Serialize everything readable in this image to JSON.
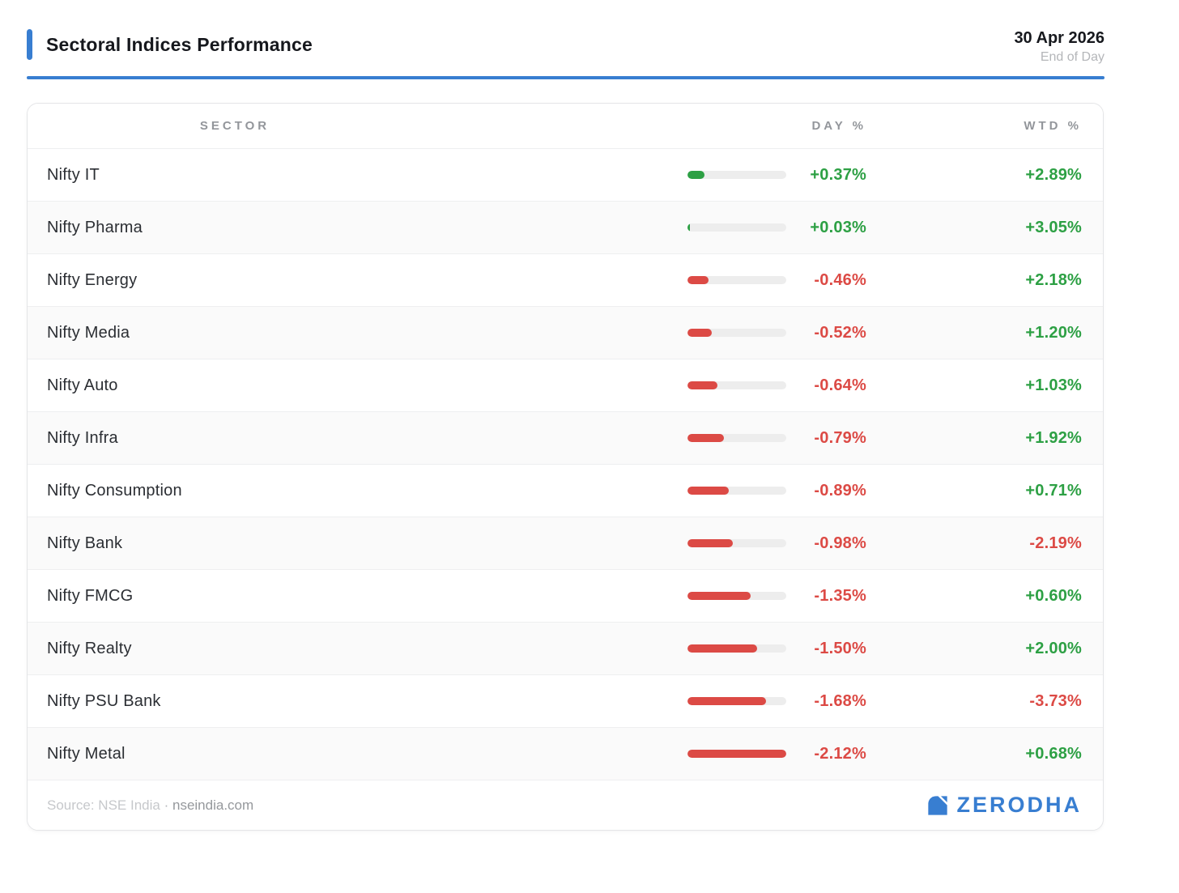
{
  "header": {
    "title": "Sectoral Indices Performance",
    "date": "30 Apr 2026",
    "period": "End of Day"
  },
  "table": {
    "columns": [
      "SECTOR",
      "DAY %",
      "WTD %"
    ],
    "bar_max_abs_day_pct": 2.12,
    "rows": [
      {
        "sector": "Nifty IT",
        "day_pct": 0.37,
        "day_label": "+0.37%",
        "wtd_pct": 2.89,
        "wtd_label": "+2.89%"
      },
      {
        "sector": "Nifty Pharma",
        "day_pct": 0.03,
        "day_label": "+0.03%",
        "wtd_pct": 3.05,
        "wtd_label": "+3.05%"
      },
      {
        "sector": "Nifty Energy",
        "day_pct": -0.46,
        "day_label": "-0.46%",
        "wtd_pct": 2.18,
        "wtd_label": "+2.18%"
      },
      {
        "sector": "Nifty Media",
        "day_pct": -0.52,
        "day_label": "-0.52%",
        "wtd_pct": 1.2,
        "wtd_label": "+1.20%"
      },
      {
        "sector": "Nifty Auto",
        "day_pct": -0.64,
        "day_label": "-0.64%",
        "wtd_pct": 1.03,
        "wtd_label": "+1.03%"
      },
      {
        "sector": "Nifty Infra",
        "day_pct": -0.79,
        "day_label": "-0.79%",
        "wtd_pct": 1.92,
        "wtd_label": "+1.92%"
      },
      {
        "sector": "Nifty Consumption",
        "day_pct": -0.89,
        "day_label": "-0.89%",
        "wtd_pct": 0.71,
        "wtd_label": "+0.71%"
      },
      {
        "sector": "Nifty Bank",
        "day_pct": -0.98,
        "day_label": "-0.98%",
        "wtd_pct": -2.19,
        "wtd_label": "-2.19%"
      },
      {
        "sector": "Nifty FMCG",
        "day_pct": -1.35,
        "day_label": "-1.35%",
        "wtd_pct": 0.6,
        "wtd_label": "+0.60%"
      },
      {
        "sector": "Nifty Realty",
        "day_pct": -1.5,
        "day_label": "-1.50%",
        "wtd_pct": 2.0,
        "wtd_label": "+2.00%"
      },
      {
        "sector": "Nifty PSU Bank",
        "day_pct": -1.68,
        "day_label": "-1.68%",
        "wtd_pct": -3.73,
        "wtd_label": "-3.73%"
      },
      {
        "sector": "Nifty Metal",
        "day_pct": -2.12,
        "day_label": "-2.12%",
        "wtd_pct": 0.68,
        "wtd_label": "+0.68%"
      }
    ]
  },
  "chart_data": {
    "type": "table",
    "title": "Sectoral Indices Performance",
    "subtitle": "30 Apr 2026 · End of Day",
    "columns": [
      "SECTOR",
      "DAY %",
      "WTD %"
    ],
    "categories": [
      "Nifty IT",
      "Nifty Pharma",
      "Nifty Energy",
      "Nifty Media",
      "Nifty Auto",
      "Nifty Infra",
      "Nifty Consumption",
      "Nifty Bank",
      "Nifty FMCG",
      "Nifty Realty",
      "Nifty PSU Bank",
      "Nifty Metal"
    ],
    "series": [
      {
        "name": "DAY %",
        "values": [
          0.37,
          0.03,
          -0.46,
          -0.52,
          -0.64,
          -0.79,
          -0.89,
          -0.98,
          -1.35,
          -1.5,
          -1.68,
          -2.12
        ]
      },
      {
        "name": "WTD %",
        "values": [
          2.89,
          3.05,
          2.18,
          1.2,
          1.03,
          1.92,
          0.71,
          -2.19,
          0.6,
          2.0,
          -3.73,
          0.68
        ]
      }
    ],
    "layout_hints": {
      "inline_bar_metric": "DAY %",
      "inline_bar_scale_max_abs": 2.12,
      "positive_color": "#2da044",
      "negative_color": "#dc4a45"
    }
  },
  "footer": {
    "source_prefix": "Source: NSE India",
    "separator": "·",
    "source_link": "nseindia.com",
    "brand": "ZERODHA"
  },
  "colors": {
    "accent_blue": "#387ed1",
    "positive_green": "#2da044",
    "negative_red": "#dc4a45",
    "bar_track_gray": "#ededed"
  },
  "icons": {
    "brand_logo": "zerodha-kite-icon"
  }
}
